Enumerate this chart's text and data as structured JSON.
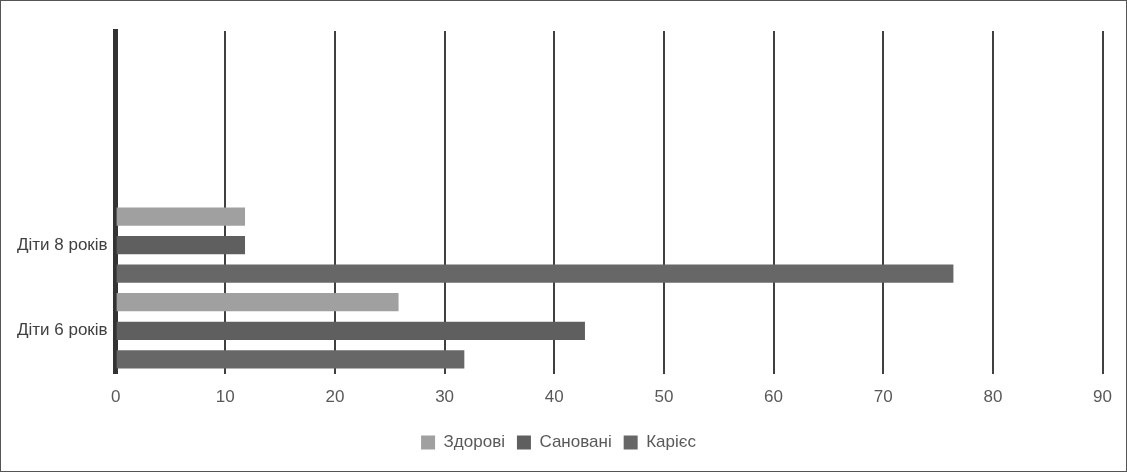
{
  "chart_data": {
    "type": "bar",
    "orientation": "horizontal",
    "categories": [
      null,
      null,
      "Діти 8 років",
      "Діти 6 років"
    ],
    "series": [
      {
        "name": "Здорові",
        "color": "#a0a0a0",
        "values": [
          null,
          null,
          11.8,
          25.8
        ]
      },
      {
        "name": "Сановані",
        "color": "#5f5f5f",
        "values": [
          null,
          null,
          11.8,
          42.8
        ]
      },
      {
        "name": "Карієс",
        "color": "#676767",
        "values": [
          null,
          null,
          76.4,
          31.8
        ]
      }
    ],
    "xlim": [
      0,
      90
    ],
    "xticks": [
      0,
      10,
      20,
      30,
      40,
      50,
      60,
      70,
      80,
      90
    ],
    "grid": "x",
    "legend": "bottom"
  }
}
